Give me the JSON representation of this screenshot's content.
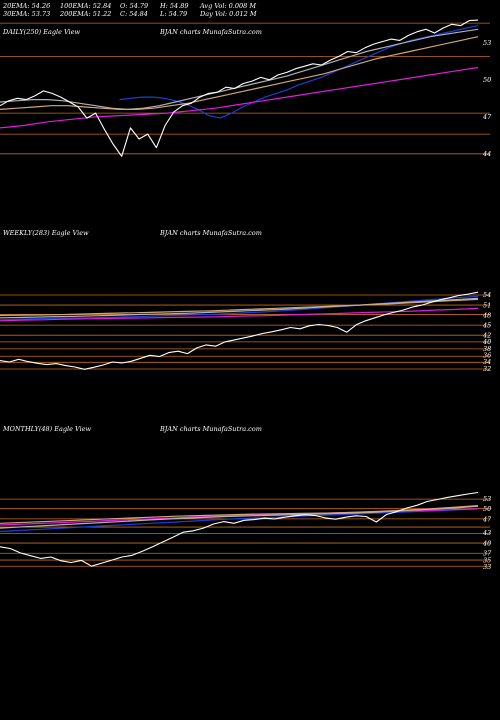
{
  "header": {
    "ema20": "20EMA: 54.26",
    "ema30": "30EMA: 53.73",
    "ema100": "100EMA: 52.84",
    "ema200": "200EMA: 51.22",
    "open": "O: 54.79",
    "close": "C: 54.84",
    "high": "H: 54.89",
    "low": "L: 54.79",
    "avg_vol": "Avg Vol: 0.008  M",
    "day_vol": "Day Vol: 0.012  M"
  },
  "colors": {
    "background": "#000000",
    "price": "#ffffff",
    "ema_fast": "#1a3fd6",
    "ema_slow": "#e01be0",
    "levels": "#c86a1e",
    "ema_gray": "#b0b0b0",
    "ema_tan": "#d2a679"
  },
  "chart_data": [
    {
      "type": "line",
      "title": "DAILY(250) Eagle  View",
      "subtitle": "BJAN  charts MunafaSutra.com",
      "y_ticks": [
        "53",
        "50",
        "47",
        "44"
      ],
      "y_tick_values": [
        53,
        50,
        47,
        44
      ],
      "ylim": [
        43.5,
        55.5
      ],
      "x_count": 250,
      "series": [
        {
          "role": "price",
          "color": "#ffffff",
          "values": [
            47.9,
            48.3,
            48.5,
            48.4,
            48.7,
            49.1,
            48.9,
            48.6,
            48.2,
            47.8,
            46.9,
            47.3,
            46.0,
            44.8,
            43.8,
            46.1,
            45.2,
            45.6,
            44.5,
            46.3,
            47.4,
            47.9,
            48.1,
            48.6,
            48.9,
            49.0,
            49.4,
            49.3,
            49.7,
            49.9,
            50.2,
            50.0,
            50.4,
            50.6,
            50.9,
            51.1,
            51.3,
            51.2,
            51.6,
            51.9,
            52.3,
            52.2,
            52.6,
            52.9,
            53.1,
            53.3,
            53.2,
            53.6,
            53.9,
            54.1,
            53.8,
            54.2,
            54.5,
            54.4,
            54.8,
            54.84
          ]
        },
        {
          "role": "ema",
          "color": "#1a3fd6",
          "values": [
            48.4,
            48.5,
            48.6,
            48.6,
            48.5,
            48.3,
            48.0,
            47.6,
            47.1,
            46.9,
            47.3,
            47.8,
            48.2,
            48.6,
            48.9,
            49.2,
            49.6,
            49.9,
            50.2,
            50.6,
            51.0,
            51.4,
            51.8,
            52.2,
            52.6,
            52.9,
            53.2,
            53.4,
            53.6,
            53.8,
            54.0,
            54.2,
            54.4
          ]
        },
        {
          "role": "ema",
          "color": "#e01be0",
          "values": [
            46.1,
            46.3,
            46.6,
            46.8,
            47.0,
            47.1,
            47.2,
            47.3,
            47.5,
            47.7,
            48.0,
            48.3,
            48.6,
            48.9,
            49.2,
            49.5,
            49.8,
            50.1,
            50.4,
            50.7,
            51.0
          ]
        },
        {
          "role": "ema",
          "color": "#b0b0b0",
          "values": [
            48.2,
            48.3,
            48.4,
            48.4,
            48.3,
            48.1,
            47.9,
            47.7,
            47.6,
            47.7,
            47.9,
            48.2,
            48.5,
            48.8,
            49.1,
            49.4,
            49.7,
            50.0,
            50.3,
            50.7,
            51.1,
            51.5,
            51.9,
            52.3,
            52.6,
            52.9,
            53.2,
            53.5,
            53.7,
            53.9,
            54.1
          ]
        },
        {
          "role": "ema",
          "color": "#d2a679",
          "values": [
            47.6,
            47.7,
            47.8,
            47.9,
            47.9,
            47.8,
            47.7,
            47.6,
            47.6,
            47.7,
            47.9,
            48.1,
            48.4,
            48.7,
            49.0,
            49.3,
            49.6,
            49.9,
            50.2,
            50.5,
            50.9,
            51.3,
            51.7,
            52.0,
            52.3,
            52.6,
            52.9,
            53.2,
            53.5
          ]
        }
      ],
      "levels": [
        54.6,
        51.9,
        47.3,
        45.6,
        44.0
      ]
    },
    {
      "type": "line",
      "title": "WEEKLY(283) Eagle  View",
      "subtitle": "BJAN  charts MunafaSutra.com",
      "y_ticks": [
        "54",
        "51",
        "48",
        "45",
        "42",
        "40",
        "38",
        "36",
        "34",
        "32"
      ],
      "y_tick_values": [
        54,
        51,
        48,
        45,
        42,
        40,
        38,
        36,
        34,
        32
      ],
      "ylim": [
        31,
        55.5
      ],
      "x_count": 283,
      "series": [
        {
          "role": "price",
          "color": "#ffffff",
          "values": [
            34.4,
            34.0,
            34.8,
            34.1,
            33.6,
            33.2,
            33.5,
            32.9,
            32.5,
            31.8,
            32.4,
            33.1,
            34.0,
            33.7,
            34.2,
            35.1,
            36.0,
            35.6,
            36.8,
            37.2,
            36.5,
            38.2,
            39.1,
            38.7,
            40.0,
            40.6,
            41.2,
            41.8,
            42.5,
            43.0,
            43.6,
            44.3,
            43.9,
            44.8,
            45.2,
            44.9,
            44.3,
            42.9,
            45.1,
            46.3,
            47.2,
            48.1,
            48.8,
            49.5,
            50.4,
            51.0,
            51.8,
            52.6,
            53.2,
            53.9,
            54.3,
            54.84
          ]
        },
        {
          "role": "ema",
          "color": "#1a3fd6",
          "values": [
            46.6,
            46.8,
            47.0,
            47.1,
            47.2,
            47.3,
            47.5,
            47.7,
            47.9,
            48.1,
            48.3,
            48.6,
            48.9,
            49.3,
            49.7,
            50.2,
            50.7,
            51.2,
            51.7,
            52.2,
            52.7,
            53.2,
            53.6
          ]
        },
        {
          "role": "ema",
          "color": "#e01be0",
          "values": [
            46.3,
            46.5,
            46.6,
            46.8,
            46.9,
            47.0,
            47.1,
            47.2,
            47.3,
            47.4,
            47.5,
            47.7,
            47.8,
            48.0,
            48.2,
            48.4,
            48.6,
            48.8,
            49.0,
            49.2,
            49.5,
            49.7,
            50.0
          ]
        },
        {
          "role": "ema",
          "color": "#b0b0b0",
          "values": [
            47.2,
            47.3,
            47.5,
            47.6,
            47.8,
            48.0,
            48.2,
            48.4,
            48.6,
            48.9,
            49.2,
            49.5,
            49.8,
            50.2,
            50.6,
            51.0,
            51.4,
            51.8,
            52.2,
            52.6,
            53.0
          ]
        },
        {
          "role": "ema",
          "color": "#d2a679",
          "values": [
            47.9,
            48.0,
            48.1,
            48.3,
            48.5,
            48.7,
            48.9,
            49.1,
            49.3,
            49.6,
            49.9,
            50.2,
            50.5,
            50.8,
            51.1,
            51.5,
            51.9,
            52.3,
            52.7
          ]
        }
      ],
      "levels": [
        54.0,
        51.0,
        48.2,
        45.0,
        42.0,
        40.0,
        37.9,
        35.7,
        33.9,
        31.9
      ]
    },
    {
      "type": "line",
      "title": "MONTHLY(48) Eagle  View",
      "subtitle": "BJAN  charts MunafaSutra.com",
      "y_ticks": [
        "53",
        "50",
        "47",
        "43",
        "40",
        "37",
        "35",
        "33"
      ],
      "y_tick_values": [
        53,
        50,
        47,
        43,
        40,
        37,
        35,
        33
      ],
      "ylim": [
        31.5,
        55
      ],
      "x_count": 48,
      "series": [
        {
          "role": "price",
          "color": "#ffffff",
          "values": [
            38.9,
            38.4,
            37.1,
            36.3,
            35.5,
            35.9,
            34.8,
            34.3,
            34.9,
            33.2,
            34.1,
            35.0,
            35.9,
            36.4,
            37.6,
            38.9,
            40.3,
            41.7,
            43.2,
            43.6,
            44.4,
            45.6,
            46.3,
            45.8,
            46.7,
            46.9,
            47.3,
            47.1,
            47.6,
            48.0,
            48.3,
            48.1,
            47.4,
            47.0,
            47.6,
            48.0,
            47.8,
            46.2,
            48.4,
            49.2,
            50.3,
            51.1,
            52.2,
            52.8,
            53.4,
            53.9,
            54.4,
            54.84
          ]
        },
        {
          "role": "ema",
          "color": "#1a3fd6",
          "values": [
            43.4,
            43.8,
            44.2,
            44.6,
            45.0,
            45.4,
            45.8,
            46.2,
            46.6,
            47.0,
            47.3,
            47.6,
            47.9,
            48.2,
            48.5,
            48.8,
            49.1,
            49.4,
            49.7,
            50.0
          ]
        },
        {
          "role": "ema",
          "color": "#e01be0",
          "values": [
            45.3,
            45.6,
            45.9,
            46.2,
            46.5,
            46.8,
            47.1,
            47.4,
            47.7,
            48.0,
            48.2,
            48.4,
            48.6,
            48.8,
            49.0,
            49.2,
            49.4,
            49.6,
            49.8,
            50.1
          ]
        },
        {
          "role": "ema",
          "color": "#b0b0b0",
          "values": [
            44.4,
            44.8,
            45.2,
            45.6,
            46.0,
            46.4,
            46.8,
            47.2,
            47.5,
            47.8,
            48.0,
            48.2,
            48.4,
            48.6,
            48.8,
            49.1,
            49.5,
            49.9,
            50.3,
            50.8
          ]
        },
        {
          "role": "ema",
          "color": "#d2a679",
          "values": [
            45.8,
            46.1,
            46.4,
            46.7,
            47.0,
            47.3,
            47.6,
            47.9,
            48.1,
            48.3,
            48.5,
            48.6,
            48.7,
            48.8,
            49.0,
            49.3,
            49.6,
            50.0,
            50.5,
            51.0
          ]
        }
      ],
      "levels": [
        52.9,
        50.1,
        47.1,
        44.7,
        42.8,
        40.0,
        37.0,
        35.0,
        33.2
      ]
    }
  ]
}
